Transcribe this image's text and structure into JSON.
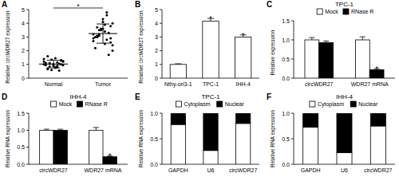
{
  "chart_data": [
    {
      "type": "dot_plot",
      "panel_label": "A",
      "ylabel": "Relative circWDR27 expression",
      "categories": [
        "Normal",
        "Tumor"
      ],
      "points": [
        [
          1.0,
          0.9,
          1.1,
          1.2,
          0.8,
          0.7,
          1.3,
          1.0,
          0.95,
          1.05,
          0.6,
          1.4,
          1.15,
          0.85,
          1.25,
          0.75,
          1.6,
          1.0,
          0.9,
          1.1,
          0.55,
          1.35,
          1.2,
          0.8,
          1.05,
          0.95,
          1.45,
          0.65,
          1.3,
          1.0
        ],
        [
          3.2,
          2.8,
          3.5,
          4.0,
          2.5,
          3.0,
          3.8,
          4.3,
          2.2,
          3.3,
          3.6,
          2.9,
          4.6,
          3.1,
          2.0,
          3.4,
          3.7,
          2.6,
          4.1,
          3.0,
          1.7,
          3.5,
          2.7,
          4.8,
          3.2,
          2.4,
          3.9,
          3.1,
          2.9,
          3.6
        ]
      ],
      "mean": [
        1.03,
        3.25
      ],
      "sd": [
        0.28,
        0.7
      ],
      "color": "#000000",
      "ylim": [
        0,
        5
      ],
      "yticks": [
        0,
        1,
        2,
        3,
        4,
        5
      ],
      "annotations": [
        {
          "text": "*",
          "between": [
            "Normal",
            "Tumor"
          ]
        }
      ]
    },
    {
      "type": "bar",
      "panel_label": "B",
      "ylabel": "Relative circWDR27 expression",
      "categories": [
        "Nthy-ori3-1",
        "TPC-1",
        "IHH-4"
      ],
      "series": [
        {
          "values": [
            1.0,
            4.15,
            3.0
          ],
          "errors": [
            0.05,
            0.2,
            0.15
          ],
          "color": "#ffffff"
        }
      ],
      "ylim": [
        0,
        5
      ],
      "yticks": [
        0,
        1,
        2,
        3,
        4,
        5
      ],
      "annotations": [
        {
          "category": "TPC-1",
          "text": "*"
        },
        {
          "category": "IHH-4",
          "text": "*"
        }
      ]
    },
    {
      "type": "bar",
      "panel_label": "C",
      "title": "TPC-1",
      "ylabel": "Relative expression",
      "categories": [
        "circWDR27",
        "WDR27 mRNA"
      ],
      "series": [
        {
          "name": "Mock",
          "color": "#ffffff",
          "values": [
            1.0,
            1.0
          ],
          "errors": [
            0.06,
            0.08
          ]
        },
        {
          "name": "RNase R",
          "color": "#000000",
          "values": [
            0.93,
            0.22
          ],
          "errors": [
            0.04,
            0.03
          ]
        }
      ],
      "legend": "top",
      "ylim": [
        0,
        1.5
      ],
      "yticks": [
        {
          "value": 0,
          "label": "0.0"
        },
        {
          "value": 0.5,
          "label": "0.5"
        },
        {
          "value": 1,
          "label": "1.0"
        },
        {
          "value": 1.5,
          "label": "1.5"
        }
      ],
      "annotations": [
        {
          "category": "WDR27 mRNA",
          "series": "RNase R",
          "text": "*"
        }
      ]
    },
    {
      "type": "bar",
      "panel_label": "D",
      "title": "IHH-4",
      "ylabel": "Relative RNA expression",
      "categories": [
        "circWDR27",
        "WDR27 mRNA"
      ],
      "series": [
        {
          "name": "Mock",
          "color": "#ffffff",
          "values": [
            1.0,
            1.0
          ],
          "errors": [
            0.03,
            0.08
          ]
        },
        {
          "name": "RNase R",
          "color": "#000000",
          "values": [
            1.0,
            0.22
          ],
          "errors": [
            0.03,
            0.03
          ]
        }
      ],
      "legend": "top",
      "ylim": [
        0,
        1.5
      ],
      "yticks": [
        {
          "value": 0,
          "label": "0.0"
        },
        {
          "value": 0.5,
          "label": "0.5"
        },
        {
          "value": 1,
          "label": "1.0"
        },
        {
          "value": 1.5,
          "label": "1.5"
        }
      ],
      "annotations": [
        {
          "category": "WDR27 mRNA",
          "series": "RNase R",
          "text": "*"
        }
      ]
    },
    {
      "type": "bar",
      "stacked": true,
      "panel_label": "E",
      "title": "TPC-1",
      "ylabel": "Relative RNA expression",
      "categories": [
        "GAPDH",
        "U6",
        "circWDR27"
      ],
      "series": [
        {
          "name": "Cytoplasm",
          "color": "#ffffff",
          "values": [
            0.78,
            0.27,
            0.8
          ]
        },
        {
          "name": "Nuclear",
          "color": "#000000",
          "values": [
            0.22,
            0.73,
            0.2
          ]
        }
      ],
      "legend": "top",
      "ylim": [
        0,
        1
      ],
      "yticks": [
        {
          "value": 0,
          "label": "0.0"
        },
        {
          "value": 0.5,
          "label": "0.5"
        },
        {
          "value": 1,
          "label": "1.0"
        }
      ]
    },
    {
      "type": "bar",
      "stacked": true,
      "panel_label": "F",
      "title": "IHH-4",
      "ylabel": "Relative RNA expression",
      "categories": [
        "GAPDH",
        "U6",
        "circWDR27"
      ],
      "series": [
        {
          "name": "Cytoplasm",
          "color": "#ffffff",
          "values": [
            0.73,
            0.23,
            0.75
          ]
        },
        {
          "name": "Nuclear",
          "color": "#000000",
          "values": [
            0.27,
            0.77,
            0.25
          ]
        }
      ],
      "legend": "top",
      "ylim": [
        0,
        1
      ],
      "yticks": [
        {
          "value": 0,
          "label": "0.0"
        },
        {
          "value": 0.5,
          "label": "0.5"
        },
        {
          "value": 1,
          "label": "1.0"
        }
      ]
    }
  ]
}
